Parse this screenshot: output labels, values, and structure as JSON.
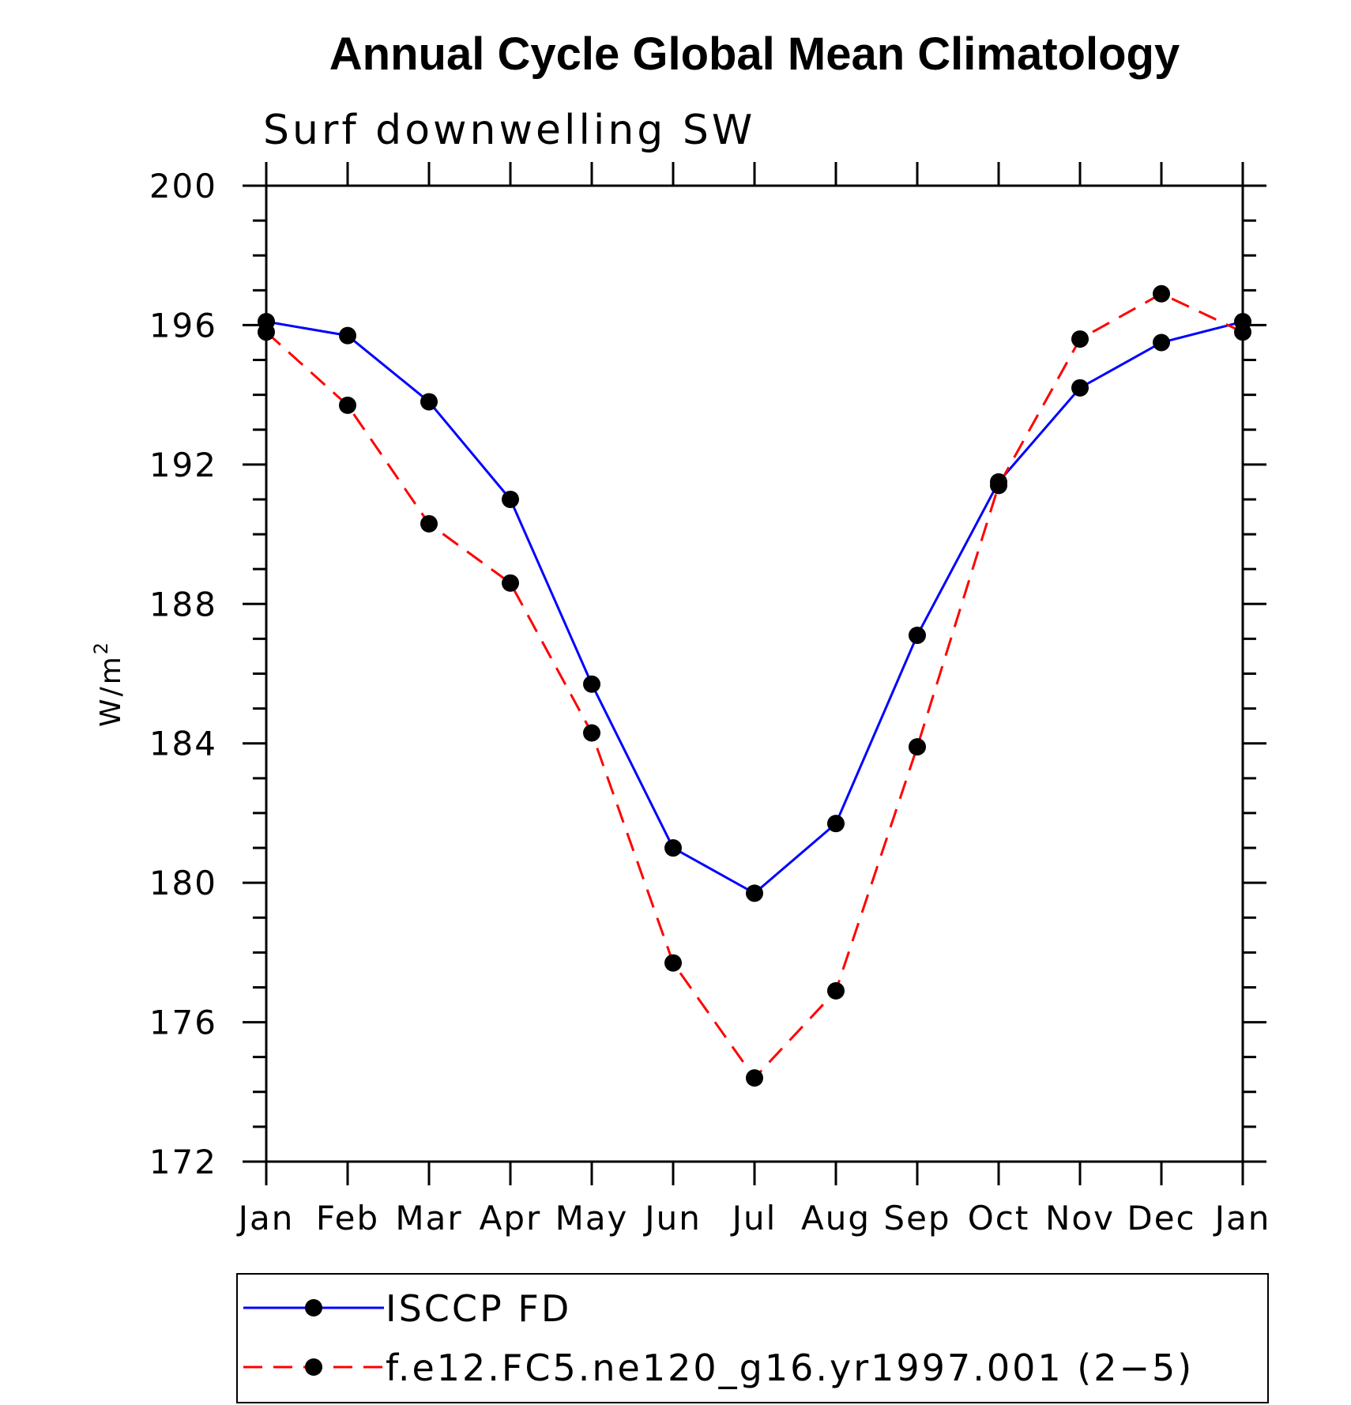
{
  "chart_data": {
    "type": "line",
    "title": "Annual Cycle Global Mean Climatology",
    "subtitle": "Surf downwelling SW",
    "ylabel": "W/m",
    "ylabel_superscript": "2",
    "xlabel": "",
    "categories": [
      "Jan",
      "Feb",
      "Mar",
      "Apr",
      "May",
      "Jun",
      "Jul",
      "Aug",
      "Sep",
      "Oct",
      "Nov",
      "Dec",
      "Jan"
    ],
    "ylim": [
      172,
      200
    ],
    "yticks": [
      172,
      176,
      180,
      184,
      188,
      192,
      196,
      200
    ],
    "series": [
      {
        "name": "ISCCP FD",
        "color": "#0000ff",
        "dash": "solid",
        "values": [
          196.1,
          195.7,
          193.8,
          191.0,
          185.7,
          181.0,
          179.7,
          181.7,
          187.1,
          191.5,
          194.2,
          195.5,
          196.1
        ]
      },
      {
        "name": "f.e12.FC5.ne120_g16.yr1997.001 (2−5)",
        "color": "#ff0000",
        "dash": "dashed",
        "values": [
          195.8,
          193.7,
          190.3,
          188.6,
          184.3,
          177.7,
          174.4,
          176.9,
          183.9,
          191.4,
          195.6,
          196.9,
          195.8
        ]
      }
    ],
    "legend_position": "bottom",
    "marker_color": "#000000"
  }
}
